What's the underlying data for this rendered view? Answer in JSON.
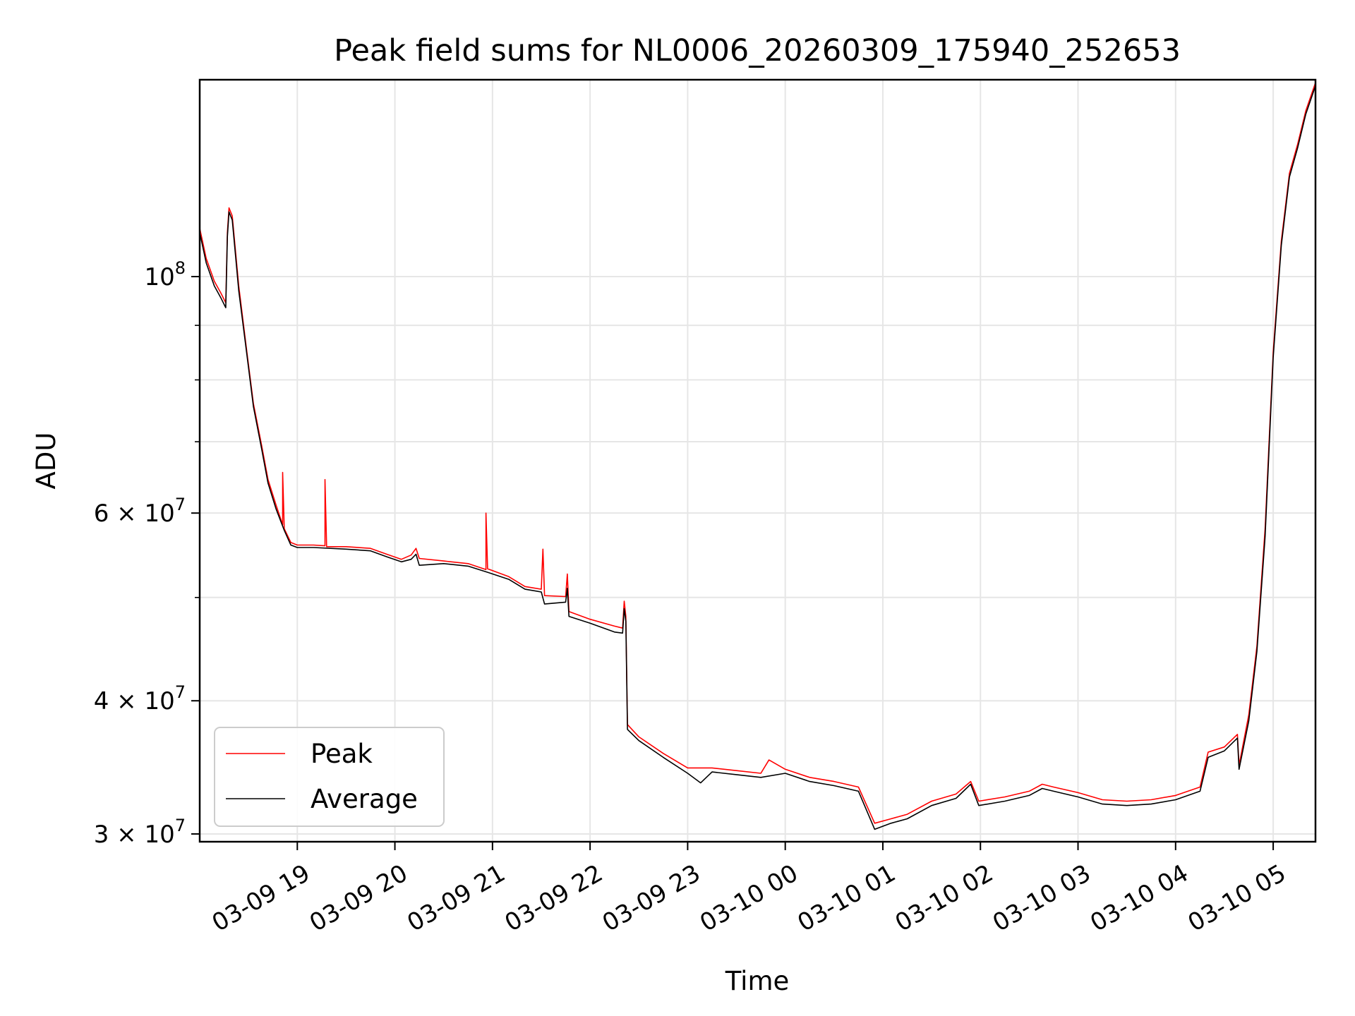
{
  "chart_data": {
    "type": "line",
    "title": "Peak field sums for NL0006_20260309_175940_252653",
    "xlabel": "Time",
    "ylabel": "ADU",
    "yscale": "log",
    "grid": true,
    "legend_position": "lower-left",
    "xlim": [
      "2026-03-09 18:00",
      "2026-03-10 05:26"
    ],
    "ylim": [
      29500000,
      153000000
    ],
    "x_ticks": [
      {
        "t": "2026-03-09 19:00",
        "label": "03-09 19"
      },
      {
        "t": "2026-03-09 20:00",
        "label": "03-09 20"
      },
      {
        "t": "2026-03-09 21:00",
        "label": "03-09 21"
      },
      {
        "t": "2026-03-09 22:00",
        "label": "03-09 22"
      },
      {
        "t": "2026-03-09 23:00",
        "label": "03-09 23"
      },
      {
        "t": "2026-03-10 00:00",
        "label": "03-10 00"
      },
      {
        "t": "2026-03-10 01:00",
        "label": "03-10 01"
      },
      {
        "t": "2026-03-10 02:00",
        "label": "03-10 02"
      },
      {
        "t": "2026-03-10 03:00",
        "label": "03-10 03"
      },
      {
        "t": "2026-03-10 04:00",
        "label": "03-10 04"
      },
      {
        "t": "2026-03-10 05:00",
        "label": "03-10 05"
      }
    ],
    "y_major_ticks": [
      {
        "v": 100000000,
        "base": "10",
        "exp": "8"
      },
      {
        "v": 60000000,
        "base": "6 × 10",
        "exp": "7"
      },
      {
        "v": 40000000,
        "base": "4 × 10",
        "exp": "7"
      },
      {
        "v": 30000000,
        "base": "3 × 10",
        "exp": "7"
      }
    ],
    "y_minor_ticks": [
      50000000,
      70000000,
      80000000,
      90000000
    ],
    "series": [
      {
        "name": "Peak",
        "color": "#ff0000",
        "points": [
          [
            "2026-03-09 18:00",
            111000000
          ],
          [
            "2026-03-09 18:04",
            104000000
          ],
          [
            "2026-03-09 18:09",
            99000000
          ],
          [
            "2026-03-09 18:13",
            96500000
          ],
          [
            "2026-03-09 18:16",
            94500000
          ],
          [
            "2026-03-09 18:17",
            110000000
          ],
          [
            "2026-03-09 18:18",
            116000000
          ],
          [
            "2026-03-09 18:20",
            114000000
          ],
          [
            "2026-03-09 18:24",
            98000000
          ],
          [
            "2026-03-09 18:29",
            85000000
          ],
          [
            "2026-03-09 18:33",
            76000000
          ],
          [
            "2026-03-09 18:38",
            69500000
          ],
          [
            "2026-03-09 18:42",
            64500000
          ],
          [
            "2026-03-09 18:47",
            61000000
          ],
          [
            "2026-03-09 18:51",
            58500000
          ],
          [
            "2026-03-09 18:51",
            65500000
          ],
          [
            "2026-03-09 18:52",
            58000000
          ],
          [
            "2026-03-09 18:56",
            56300000
          ],
          [
            "2026-03-09 19:00",
            56000000
          ],
          [
            "2026-03-09 19:10",
            56000000
          ],
          [
            "2026-03-09 19:17",
            55900000
          ],
          [
            "2026-03-09 19:17",
            64500000
          ],
          [
            "2026-03-09 19:18",
            55800000
          ],
          [
            "2026-03-09 19:30",
            55800000
          ],
          [
            "2026-03-09 19:45",
            55600000
          ],
          [
            "2026-03-09 19:55",
            54900000
          ],
          [
            "2026-03-09 20:04",
            54300000
          ],
          [
            "2026-03-09 20:10",
            54800000
          ],
          [
            "2026-03-09 20:13",
            55600000
          ],
          [
            "2026-03-09 20:15",
            54400000
          ],
          [
            "2026-03-09 20:30",
            54100000
          ],
          [
            "2026-03-09 20:45",
            53800000
          ],
          [
            "2026-03-09 20:56",
            53100000
          ],
          [
            "2026-03-09 20:56",
            60000000
          ],
          [
            "2026-03-09 20:57",
            53200000
          ],
          [
            "2026-03-09 21:10",
            52300000
          ],
          [
            "2026-03-09 21:20",
            51200000
          ],
          [
            "2026-03-09 21:30",
            50900000
          ],
          [
            "2026-03-09 21:31",
            55500000
          ],
          [
            "2026-03-09 21:32",
            50200000
          ],
          [
            "2026-03-09 21:45",
            50100000
          ],
          [
            "2026-03-09 21:46",
            52600000
          ],
          [
            "2026-03-09 21:47",
            48500000
          ],
          [
            "2026-03-09 22:00",
            47700000
          ],
          [
            "2026-03-09 22:15",
            47000000
          ],
          [
            "2026-03-09 22:20",
            46800000
          ],
          [
            "2026-03-09 22:21",
            49600000
          ],
          [
            "2026-03-09 22:22",
            48000000
          ],
          [
            "2026-03-09 22:23",
            38000000
          ],
          [
            "2026-03-09 22:30",
            37000000
          ],
          [
            "2026-03-09 22:45",
            35700000
          ],
          [
            "2026-03-09 23:00",
            34600000
          ],
          [
            "2026-03-09 23:15",
            34600000
          ],
          [
            "2026-03-09 23:30",
            34400000
          ],
          [
            "2026-03-09 23:45",
            34200000
          ],
          [
            "2026-03-09 23:50",
            35200000
          ],
          [
            "2026-03-10 00:00",
            34500000
          ],
          [
            "2026-03-10 00:15",
            33900000
          ],
          [
            "2026-03-10 00:30",
            33600000
          ],
          [
            "2026-03-10 00:45",
            33200000
          ],
          [
            "2026-03-10 00:55",
            30700000
          ],
          [
            "2026-03-10 01:05",
            31000000
          ],
          [
            "2026-03-10 01:15",
            31300000
          ],
          [
            "2026-03-10 01:30",
            32200000
          ],
          [
            "2026-03-10 01:45",
            32700000
          ],
          [
            "2026-03-10 01:54",
            33600000
          ],
          [
            "2026-03-10 01:59",
            32200000
          ],
          [
            "2026-03-10 02:15",
            32500000
          ],
          [
            "2026-03-10 02:30",
            32900000
          ],
          [
            "2026-03-10 02:38",
            33400000
          ],
          [
            "2026-03-10 02:45",
            33200000
          ],
          [
            "2026-03-10 03:00",
            32800000
          ],
          [
            "2026-03-10 03:15",
            32300000
          ],
          [
            "2026-03-10 03:30",
            32200000
          ],
          [
            "2026-03-10 03:45",
            32300000
          ],
          [
            "2026-03-10 04:00",
            32600000
          ],
          [
            "2026-03-10 04:15",
            33200000
          ],
          [
            "2026-03-10 04:20",
            35800000
          ],
          [
            "2026-03-10 04:30",
            36200000
          ],
          [
            "2026-03-10 04:38",
            37200000
          ],
          [
            "2026-03-10 04:39",
            34800000
          ],
          [
            "2026-03-10 04:45",
            38800000
          ],
          [
            "2026-03-10 04:50",
            45000000
          ],
          [
            "2026-03-10 04:55",
            58000000
          ],
          [
            "2026-03-10 05:00",
            85000000
          ],
          [
            "2026-03-10 05:05",
            108000000
          ],
          [
            "2026-03-10 05:10",
            125000000
          ],
          [
            "2026-03-10 05:15",
            133000000
          ],
          [
            "2026-03-10 05:20",
            143000000
          ],
          [
            "2026-03-10 05:26",
            152000000
          ]
        ]
      },
      {
        "name": "Average",
        "color": "#000000",
        "points": [
          [
            "2026-03-09 18:00",
            110000000
          ],
          [
            "2026-03-09 18:04",
            103000000
          ],
          [
            "2026-03-09 18:09",
            98000000
          ],
          [
            "2026-03-09 18:13",
            95500000
          ],
          [
            "2026-03-09 18:16",
            93500000
          ],
          [
            "2026-03-09 18:17",
            109000000
          ],
          [
            "2026-03-09 18:18",
            115000000
          ],
          [
            "2026-03-09 18:20",
            113000000
          ],
          [
            "2026-03-09 18:24",
            97000000
          ],
          [
            "2026-03-09 18:29",
            84500000
          ],
          [
            "2026-03-09 18:33",
            75500000
          ],
          [
            "2026-03-09 18:38",
            69000000
          ],
          [
            "2026-03-09 18:42",
            64000000
          ],
          [
            "2026-03-09 18:47",
            60500000
          ],
          [
            "2026-03-09 18:52",
            57800000
          ],
          [
            "2026-03-09 18:56",
            56000000
          ],
          [
            "2026-03-09 19:00",
            55700000
          ],
          [
            "2026-03-09 19:10",
            55700000
          ],
          [
            "2026-03-09 19:30",
            55500000
          ],
          [
            "2026-03-09 19:45",
            55300000
          ],
          [
            "2026-03-09 19:55",
            54600000
          ],
          [
            "2026-03-09 20:04",
            54000000
          ],
          [
            "2026-03-09 20:10",
            54300000
          ],
          [
            "2026-03-09 20:13",
            54900000
          ],
          [
            "2026-03-09 20:15",
            53600000
          ],
          [
            "2026-03-09 20:30",
            53800000
          ],
          [
            "2026-03-09 20:45",
            53500000
          ],
          [
            "2026-03-09 20:57",
            52800000
          ],
          [
            "2026-03-09 21:10",
            52000000
          ],
          [
            "2026-03-09 21:20",
            50900000
          ],
          [
            "2026-03-09 21:30",
            50600000
          ],
          [
            "2026-03-09 21:32",
            49300000
          ],
          [
            "2026-03-09 21:45",
            49500000
          ],
          [
            "2026-03-09 21:46",
            51000000
          ],
          [
            "2026-03-09 21:47",
            48000000
          ],
          [
            "2026-03-09 22:00",
            47300000
          ],
          [
            "2026-03-09 22:15",
            46400000
          ],
          [
            "2026-03-09 22:20",
            46300000
          ],
          [
            "2026-03-09 22:21",
            48800000
          ],
          [
            "2026-03-09 22:22",
            47500000
          ],
          [
            "2026-03-09 22:23",
            37600000
          ],
          [
            "2026-03-09 22:30",
            36700000
          ],
          [
            "2026-03-09 22:45",
            35400000
          ],
          [
            "2026-03-09 23:00",
            34200000
          ],
          [
            "2026-03-09 23:08",
            33500000
          ],
          [
            "2026-03-09 23:15",
            34300000
          ],
          [
            "2026-03-09 23:30",
            34100000
          ],
          [
            "2026-03-09 23:45",
            33900000
          ],
          [
            "2026-03-10 00:00",
            34200000
          ],
          [
            "2026-03-10 00:15",
            33600000
          ],
          [
            "2026-03-10 00:30",
            33300000
          ],
          [
            "2026-03-10 00:45",
            32900000
          ],
          [
            "2026-03-10 00:55",
            30300000
          ],
          [
            "2026-03-10 01:05",
            30700000
          ],
          [
            "2026-03-10 01:15",
            31000000
          ],
          [
            "2026-03-10 01:30",
            31900000
          ],
          [
            "2026-03-10 01:45",
            32400000
          ],
          [
            "2026-03-10 01:54",
            33400000
          ],
          [
            "2026-03-10 01:59",
            31900000
          ],
          [
            "2026-03-10 02:15",
            32200000
          ],
          [
            "2026-03-10 02:30",
            32600000
          ],
          [
            "2026-03-10 02:38",
            33100000
          ],
          [
            "2026-03-10 02:45",
            32900000
          ],
          [
            "2026-03-10 03:00",
            32500000
          ],
          [
            "2026-03-10 03:15",
            32000000
          ],
          [
            "2026-03-10 03:30",
            31900000
          ],
          [
            "2026-03-10 03:45",
            32000000
          ],
          [
            "2026-03-10 04:00",
            32300000
          ],
          [
            "2026-03-10 04:15",
            32900000
          ],
          [
            "2026-03-10 04:20",
            35400000
          ],
          [
            "2026-03-10 04:30",
            35900000
          ],
          [
            "2026-03-10 04:38",
            36900000
          ],
          [
            "2026-03-10 04:39",
            34500000
          ],
          [
            "2026-03-10 04:45",
            38300000
          ],
          [
            "2026-03-10 04:50",
            44500000
          ],
          [
            "2026-03-10 04:55",
            57000000
          ],
          [
            "2026-03-10 05:00",
            84000000
          ],
          [
            "2026-03-10 05:05",
            107000000
          ],
          [
            "2026-03-10 05:10",
            124000000
          ],
          [
            "2026-03-10 05:15",
            132000000
          ],
          [
            "2026-03-10 05:20",
            142000000
          ],
          [
            "2026-03-10 05:26",
            151000000
          ]
        ]
      }
    ]
  }
}
